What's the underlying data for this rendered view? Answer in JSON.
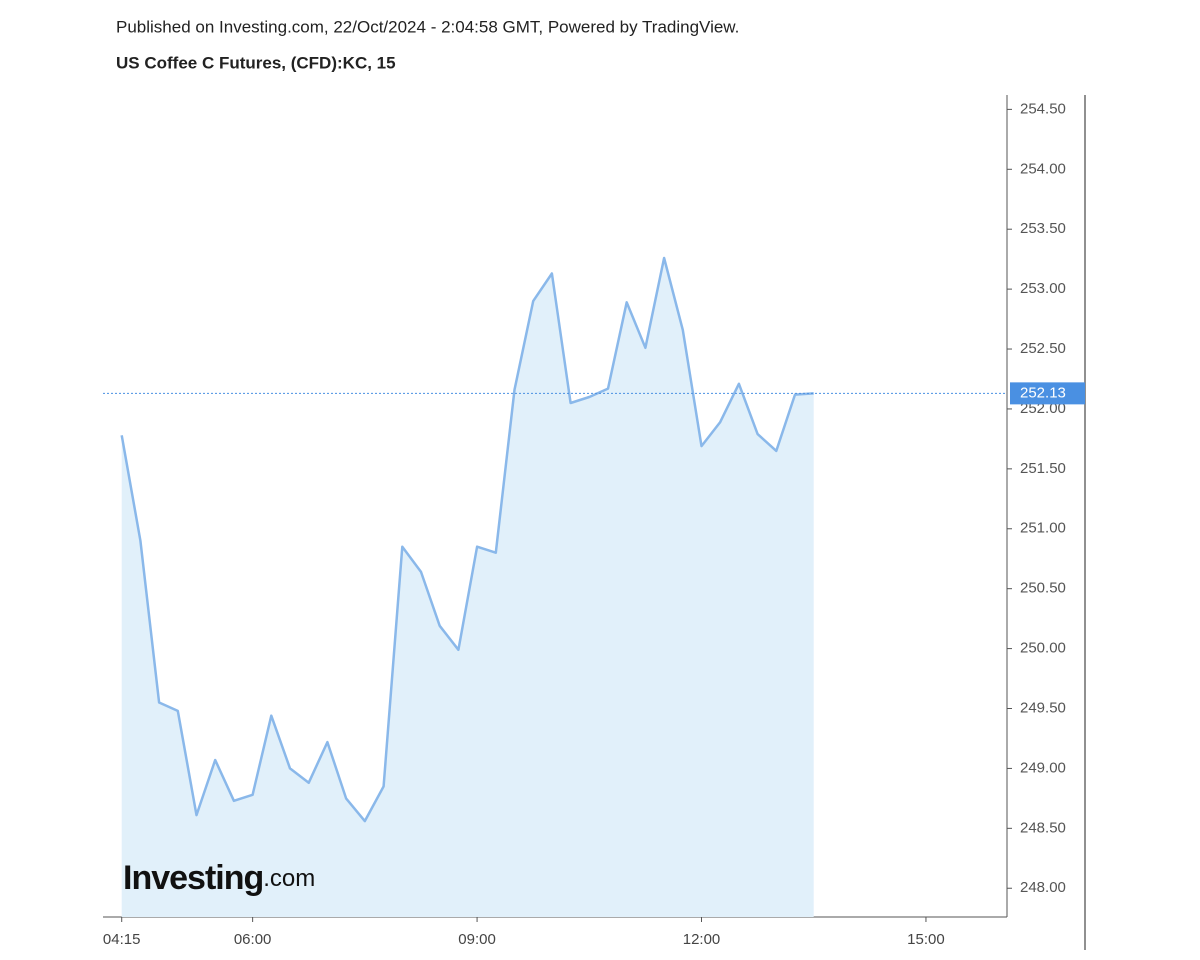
{
  "header": {
    "published": "Published on Investing.com, 22/Oct/2024 - 2:04:58 GMT, Powered by TradingView.",
    "symbol": "US Coffee C Futures, (CFD):KC, 15"
  },
  "chart_data": {
    "type": "area",
    "watermark": {
      "brand": "Investing",
      "suffix": ".com"
    },
    "x": [
      "04:15",
      "04:30",
      "04:45",
      "05:00",
      "05:15",
      "05:30",
      "05:45",
      "06:00",
      "06:15",
      "06:30",
      "06:45",
      "07:00",
      "07:15",
      "07:30",
      "07:45",
      "08:00",
      "08:15",
      "08:30",
      "08:45",
      "09:00",
      "09:15",
      "09:30",
      "09:45",
      "10:00",
      "10:15",
      "10:30",
      "10:45",
      "11:00",
      "11:15",
      "11:30",
      "11:45",
      "12:00",
      "12:15",
      "12:30",
      "12:45",
      "13:00",
      "13:15",
      "13:30"
    ],
    "series": [
      {
        "name": "KC",
        "color": "#8ab8ea",
        "fill": "#e1f0fa",
        "values": [
          251.78,
          250.9,
          249.55,
          249.48,
          248.61,
          249.07,
          248.73,
          248.78,
          249.44,
          249.0,
          248.88,
          249.22,
          248.75,
          248.56,
          248.85,
          250.85,
          250.64,
          250.19,
          249.99,
          250.85,
          250.8,
          252.16,
          252.9,
          253.13,
          252.05,
          252.1,
          252.17,
          252.89,
          252.51,
          253.26,
          252.66,
          251.69,
          251.89,
          252.21,
          251.79,
          251.65,
          252.12,
          252.13
        ]
      }
    ],
    "last_price": {
      "value": 252.13,
      "label": "252.13",
      "color": "#4a90e2"
    },
    "xlim": [
      "04:00",
      "16:05"
    ],
    "xticks": [
      "04:15",
      "06:00",
      "09:00",
      "12:00",
      "15:00"
    ],
    "ylim": [
      247.76,
      254.62
    ],
    "yticks": [
      {
        "value": 248,
        "label": "248.00"
      },
      {
        "value": 248.5,
        "label": "248.50"
      },
      {
        "value": 249,
        "label": "249.00"
      },
      {
        "value": 249.5,
        "label": "249.50"
      },
      {
        "value": 250,
        "label": "250.00"
      },
      {
        "value": 250.5,
        "label": "250.50"
      },
      {
        "value": 251,
        "label": "251.00"
      },
      {
        "value": 251.5,
        "label": "251.50"
      },
      {
        "value": 252,
        "label": "252.00"
      },
      {
        "value": 252.5,
        "label": "252.50"
      },
      {
        "value": 253,
        "label": "253.00"
      },
      {
        "value": 253.5,
        "label": "253.50"
      },
      {
        "value": 254,
        "label": "254.00"
      },
      {
        "value": 254.5,
        "label": "254.50"
      }
    ],
    "grid": false
  }
}
